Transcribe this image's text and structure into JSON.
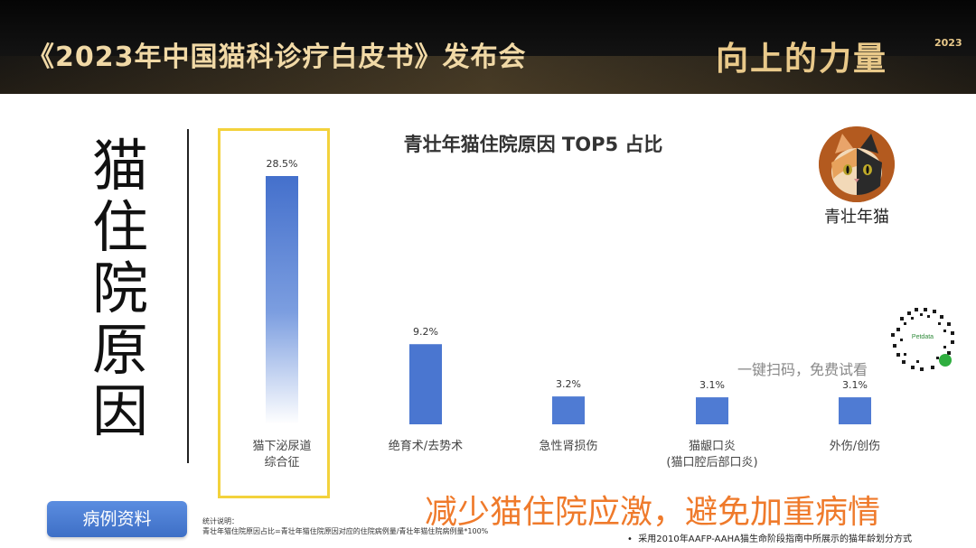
{
  "header": {
    "title": "《2023年中国猫科诊疗白皮书》发布会",
    "brand": "向上的力量",
    "brand_year": "2023"
  },
  "side_title": "猫住院原因",
  "avatar_label": "青壮年猫",
  "qr": {
    "logo_text": "Petdata",
    "caption": "一键扫码，免费试看"
  },
  "button_label": "病例资料",
  "slogan": "减少猫住院应激，避免加重病情",
  "stats_note": {
    "title": "统计说明：",
    "body": "青壮年猫住院原因占比=青壮年猫住院原因对应的住院病例量/青壮年猫住院病例量*100%"
  },
  "footnote": "采用2010年AAFP-AAHA猫生命阶段指南中所展示的猫年龄划分方式",
  "colors": {
    "bar": "#4a76d0",
    "highlight": "#f3d23c",
    "slogan": "#ef7a2b",
    "button": "#4a7bd4"
  },
  "chart_data": {
    "type": "bar",
    "title": "青壮年猫住院原因 TOP5 占比",
    "categories": [
      [
        "猫下泌尿道",
        "综合征"
      ],
      [
        "绝育术/去势术"
      ],
      [
        "急性肾损伤"
      ],
      [
        "猫龈口炎",
        "(猫口腔后部口炎)"
      ],
      [
        "外伤/创伤"
      ]
    ],
    "values": [
      28.5,
      9.2,
      3.2,
      3.1,
      3.1
    ],
    "value_labels": [
      "28.5%",
      "9.2%",
      "3.2%",
      "3.1%",
      "3.1%"
    ],
    "unit": "%",
    "highlighted_index": 0,
    "ylim": [
      0,
      28.5
    ],
    "grid": false,
    "legend": "none"
  }
}
